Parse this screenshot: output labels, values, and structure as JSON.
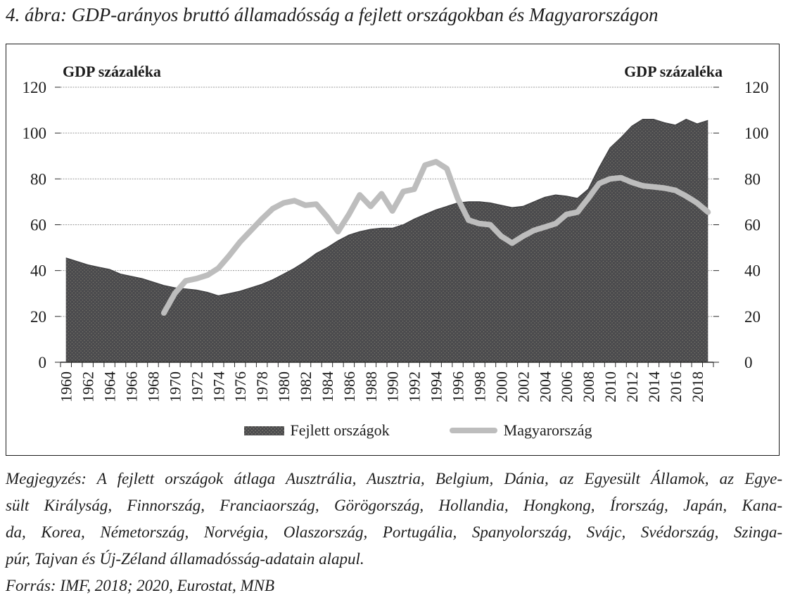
{
  "title": "4. ábra: GDP-arányos bruttó államadósság a fejlett országokban és Magyarországon",
  "chart_data": {
    "type": "area+line",
    "x": [
      1960,
      1961,
      1962,
      1963,
      1964,
      1965,
      1966,
      1967,
      1968,
      1969,
      1970,
      1971,
      1972,
      1973,
      1974,
      1975,
      1976,
      1977,
      1978,
      1979,
      1980,
      1981,
      1982,
      1983,
      1984,
      1985,
      1986,
      1987,
      1988,
      1989,
      1990,
      1991,
      1992,
      1993,
      1994,
      1995,
      1996,
      1997,
      1998,
      1999,
      2000,
      2001,
      2002,
      2003,
      2004,
      2005,
      2006,
      2007,
      2008,
      2009,
      2010,
      2011,
      2012,
      2013,
      2014,
      2015,
      2016,
      2017,
      2018,
      2019
    ],
    "x_tick_labels": [
      "1960",
      "1962",
      "1964",
      "1966",
      "1968",
      "1970",
      "1972",
      "1974",
      "1976",
      "1978",
      "1980",
      "1982",
      "1984",
      "1986",
      "1988",
      "1990",
      "1992",
      "1994",
      "1996",
      "1998",
      "2000",
      "2002",
      "2004",
      "2006",
      "2008",
      "2010",
      "2012",
      "2014",
      "2016",
      "2018"
    ],
    "y_ticks": [
      0,
      20,
      40,
      60,
      80,
      100,
      120
    ],
    "ylim": [
      0,
      120
    ],
    "grid": true,
    "y_axis_label_left": "GDP százaléka",
    "y_axis_label_right": "GDP százaléka",
    "legend_position": "bottom-center",
    "series": [
      {
        "name": "Fejlett országok",
        "type": "area",
        "values": [
          45.5,
          44,
          42.5,
          41.5,
          40.5,
          38.5,
          37.5,
          36.5,
          35,
          33.5,
          32.5,
          32,
          31.5,
          30.5,
          29,
          30,
          31,
          32.5,
          34,
          36,
          38.5,
          41,
          44,
          47.5,
          50,
          53,
          55.5,
          57,
          58,
          58.5,
          58.5,
          60,
          62.5,
          64.5,
          66.5,
          68,
          69.5,
          70,
          70,
          69.5,
          68.5,
          67.5,
          68,
          70,
          72,
          73,
          72.5,
          71.5,
          75.5,
          85,
          93.5,
          98,
          103,
          106,
          106,
          104.5,
          103.5,
          106,
          104,
          105.5
        ]
      },
      {
        "name": "Magyarország",
        "type": "line",
        "values": [
          null,
          null,
          null,
          null,
          null,
          null,
          null,
          null,
          null,
          21.5,
          30,
          35.5,
          36.5,
          38,
          41,
          46.5,
          52.5,
          57.5,
          62.5,
          67,
          69.5,
          70.5,
          68.5,
          69,
          63.5,
          57,
          64.5,
          73,
          68,
          73.5,
          66,
          74.5,
          75.5,
          86,
          87.5,
          84.5,
          71.5,
          62,
          60.5,
          60,
          55,
          52,
          55,
          57.5,
          59,
          60.5,
          64.5,
          65.5,
          71.5,
          78,
          80,
          80.5,
          78.5,
          77,
          76.5,
          76,
          75,
          72.5,
          69.5,
          65.5
        ]
      }
    ]
  },
  "legend": {
    "items": [
      {
        "label": "Fejlett országok"
      },
      {
        "label": "Magyarország"
      }
    ]
  },
  "notes": {
    "lines": [
      "Megjegyzés: A fejlett országok átlaga Ausztrália, Ausztria, Belgium, Dánia, az Egyesült Államok, az Egye-",
      "sült Királyság, Finnország, Franciaország, Görögország, Hollandia, Hongkong, Írország, Japán, Kana-",
      "da, Korea, Németország, Norvégia, Olaszország, Portugália, Spanyolország, Svájc, Svédország, Szinga-",
      "púr, Tajvan és Új-Zéland államadósság-adatain alapul."
    ],
    "source": "Forrás: IMF, 2018; 2020, Eurostat, MNB"
  },
  "colors": {
    "background": "#ffffff",
    "border": "#1c1c1c",
    "area_fill": "#4a4a4d",
    "area_dots": "#b9b596",
    "area_edge": "#3e3e40",
    "line": "#bdbdbd",
    "grid": "#9a9a9a",
    "axis": "#2a2a2a",
    "text": "#1c1c1c"
  }
}
